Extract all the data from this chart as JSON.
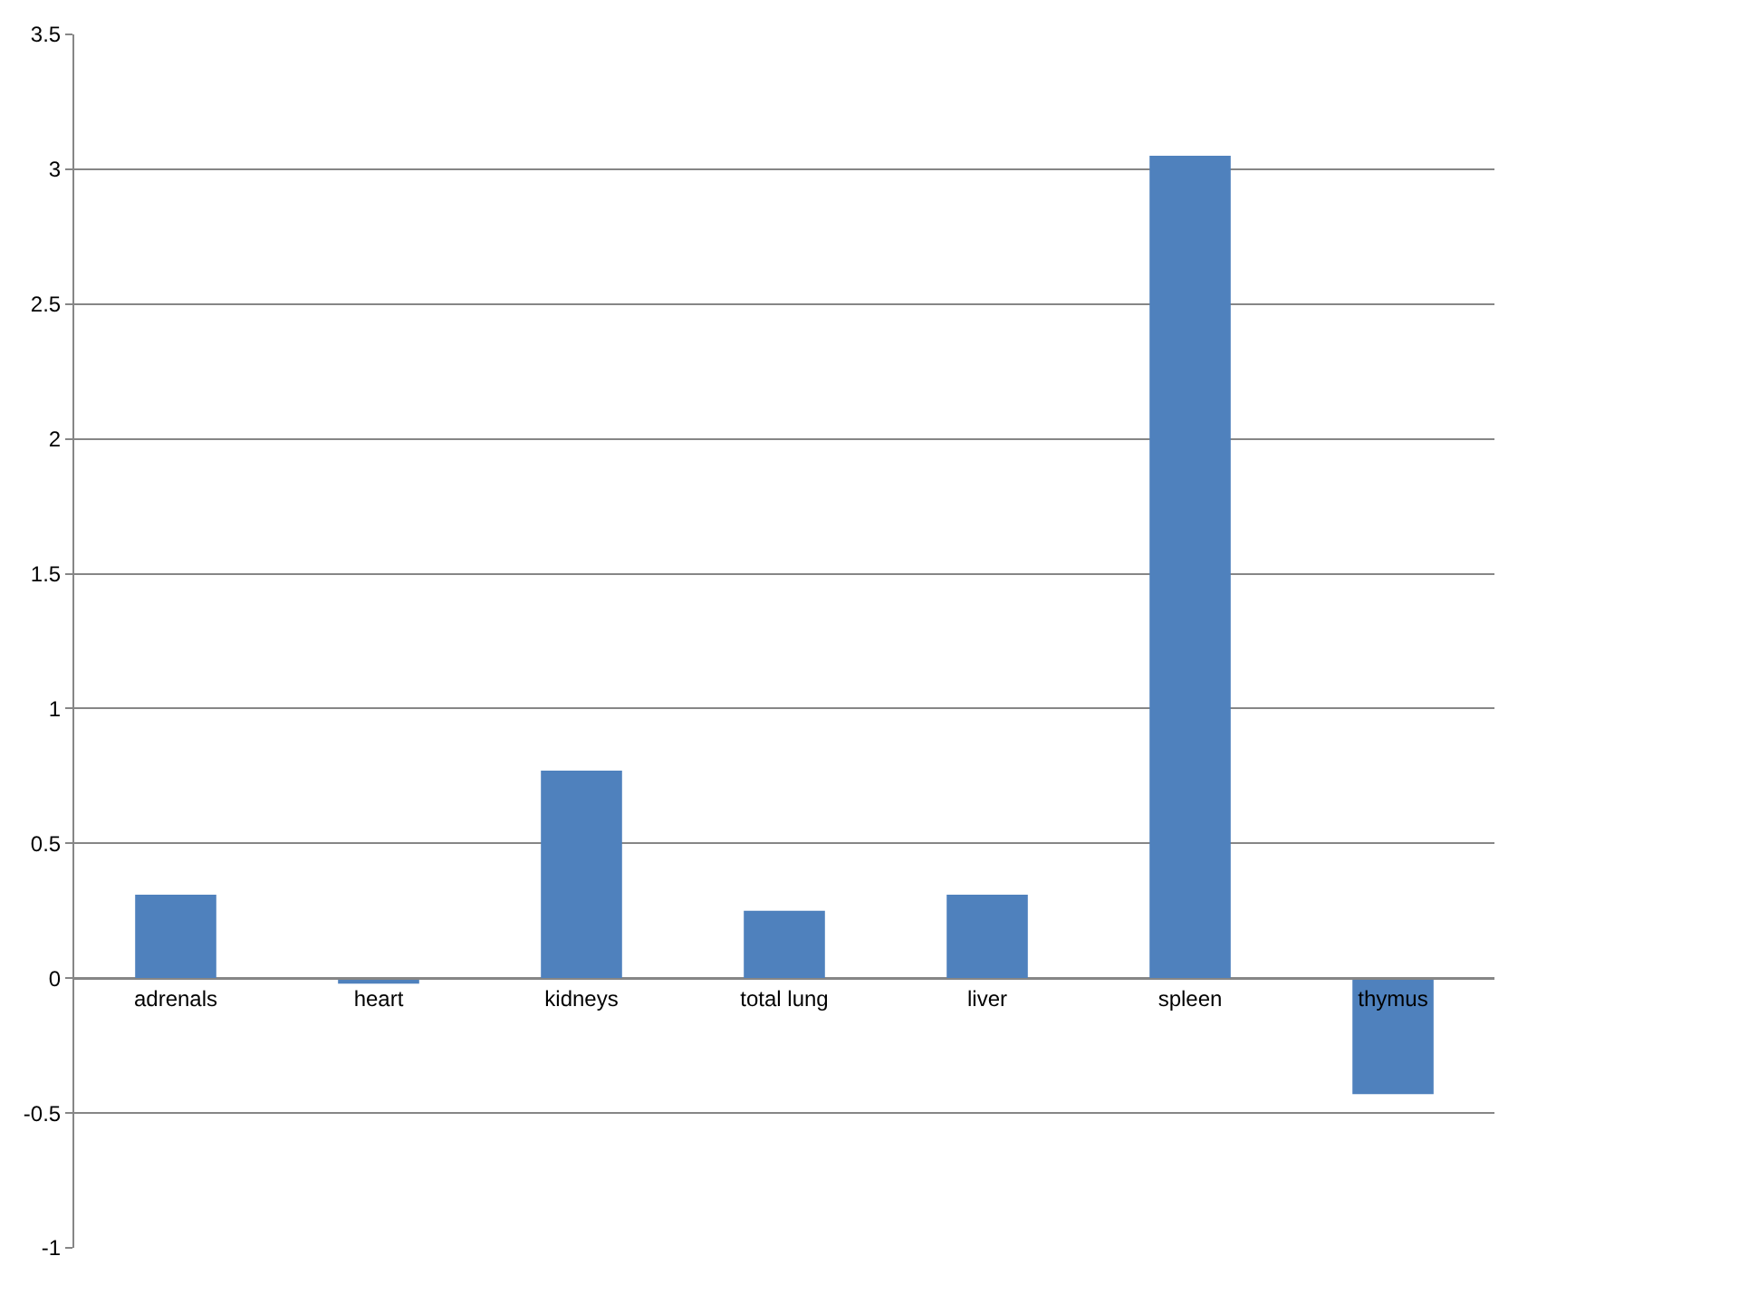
{
  "chart_data": {
    "type": "bar",
    "categories": [
      "adrenals",
      "heart",
      "kidneys",
      "total lung",
      "liver",
      "spleen",
      "thymus"
    ],
    "values": [
      0.31,
      -0.02,
      0.77,
      0.25,
      0.31,
      3.05,
      -0.43
    ],
    "color": "#4f81bd",
    "ylim": [
      -1,
      3.5
    ],
    "yticks": [
      -1,
      -0.5,
      0,
      0.5,
      1,
      1.5,
      2,
      2.5,
      3,
      3.5
    ],
    "grid": "y",
    "legend": false
  }
}
